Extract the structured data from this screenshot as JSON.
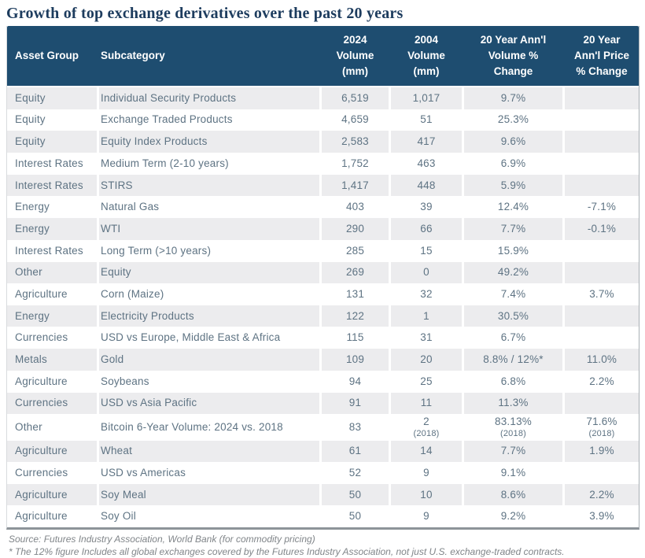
{
  "title": "Growth of top exchange derivatives over the past 20 years",
  "colors": {
    "header_bg": "#1e4d70",
    "title_color": "#1d3c5e",
    "body_text": "#5e7383",
    "stripe_bg": "#ececee",
    "footnote_color": "#808589",
    "header_text": "#ffffff"
  },
  "table": {
    "columns": [
      {
        "label": "Asset Group"
      },
      {
        "label": "Subcategory"
      },
      {
        "label": "2024\nVolume\n(mm)"
      },
      {
        "label": "2004\nVolume\n(mm)"
      },
      {
        "label": "20 Year Ann'l\nVolume %\nChange"
      },
      {
        "label": "20 Year\nAnn'l Price\n% Change"
      }
    ],
    "rows": [
      {
        "asset_group": "Equity",
        "subcategory": "Individual Security Products",
        "vol_2024": "6,519",
        "vol_2004": "1,017",
        "vol_change_20y": "9.7%",
        "price_change_20y": ""
      },
      {
        "asset_group": "Equity",
        "subcategory": "Exchange Traded Products",
        "vol_2024": "4,659",
        "vol_2004": "51",
        "vol_change_20y": "25.3%",
        "price_change_20y": ""
      },
      {
        "asset_group": "Equity",
        "subcategory": "Equity Index Products",
        "vol_2024": "2,583",
        "vol_2004": "417",
        "vol_change_20y": "9.6%",
        "price_change_20y": ""
      },
      {
        "asset_group": "Interest Rates",
        "subcategory": "Medium Term (2-10 years)",
        "vol_2024": "1,752",
        "vol_2004": "463",
        "vol_change_20y": "6.9%",
        "price_change_20y": ""
      },
      {
        "asset_group": "Interest Rates",
        "subcategory": "STIRS",
        "vol_2024": "1,417",
        "vol_2004": "448",
        "vol_change_20y": "5.9%",
        "price_change_20y": ""
      },
      {
        "asset_group": "Energy",
        "subcategory": "Natural Gas",
        "vol_2024": "403",
        "vol_2004": "39",
        "vol_change_20y": "12.4%",
        "price_change_20y": "-7.1%"
      },
      {
        "asset_group": "Energy",
        "subcategory": "WTI",
        "vol_2024": "290",
        "vol_2004": "66",
        "vol_change_20y": "7.7%",
        "price_change_20y": "-0.1%"
      },
      {
        "asset_group": "Interest Rates",
        "subcategory": "Long Term (>10 years)",
        "vol_2024": "285",
        "vol_2004": "15",
        "vol_change_20y": "15.9%",
        "price_change_20y": ""
      },
      {
        "asset_group": "Other",
        "subcategory": "Equity",
        "vol_2024": "269",
        "vol_2004": "0",
        "vol_change_20y": "49.2%",
        "price_change_20y": ""
      },
      {
        "asset_group": "Agriculture",
        "subcategory": "Corn (Maize)",
        "vol_2024": "131",
        "vol_2004": "32",
        "vol_change_20y": "7.4%",
        "price_change_20y": "3.7%"
      },
      {
        "asset_group": "Energy",
        "subcategory": "Electricity Products",
        "vol_2024": "122",
        "vol_2004": "1",
        "vol_change_20y": "30.5%",
        "price_change_20y": ""
      },
      {
        "asset_group": "Currencies",
        "subcategory": "USD vs Europe, Middle East & Africa",
        "vol_2024": "115",
        "vol_2004": "31",
        "vol_change_20y": "6.7%",
        "price_change_20y": ""
      },
      {
        "asset_group": "Metals",
        "subcategory": "Gold",
        "vol_2024": "109",
        "vol_2004": "20",
        "vol_change_20y": "8.8% / 12%*",
        "price_change_20y": "11.0%"
      },
      {
        "asset_group": "Agriculture",
        "subcategory": "Soybeans",
        "vol_2024": "94",
        "vol_2004": "25",
        "vol_change_20y": "6.8%",
        "price_change_20y": "2.2%"
      },
      {
        "asset_group": "Currencies",
        "subcategory": "USD vs Asia Pacific",
        "vol_2024": "91",
        "vol_2004": "11",
        "vol_change_20y": "11.3%",
        "price_change_20y": ""
      },
      {
        "asset_group": "Other",
        "subcategory": "Bitcoin 6-Year Volume: 2024 vs. 2018",
        "vol_2024": "83",
        "vol_2004": "2\n(2018)",
        "vol_change_20y": "83.13%\n(2018)",
        "price_change_20y": "71.6%\n(2018)"
      },
      {
        "asset_group": "Agriculture",
        "subcategory": "Wheat",
        "vol_2024": "61",
        "vol_2004": "14",
        "vol_change_20y": "7.7%",
        "price_change_20y": "1.9%"
      },
      {
        "asset_group": "Currencies",
        "subcategory": "USD vs Americas",
        "vol_2024": "52",
        "vol_2004": "9",
        "vol_change_20y": "9.1%",
        "price_change_20y": ""
      },
      {
        "asset_group": "Agriculture",
        "subcategory": "Soy Meal",
        "vol_2024": "50",
        "vol_2004": "10",
        "vol_change_20y": "8.6%",
        "price_change_20y": "2.2%"
      },
      {
        "asset_group": "Agriculture",
        "subcategory": "Soy Oil",
        "vol_2024": "50",
        "vol_2004": "9",
        "vol_change_20y": "9.2%",
        "price_change_20y": "3.9%"
      }
    ]
  },
  "footnotes": {
    "source": "Source: Futures Industry Association,  World Bank (for commodity pricing)",
    "asterisk": "* The 12% figure Includes all global exchanges covered by the Futures Industry Association, not just U.S. exchange-traded contracts."
  }
}
